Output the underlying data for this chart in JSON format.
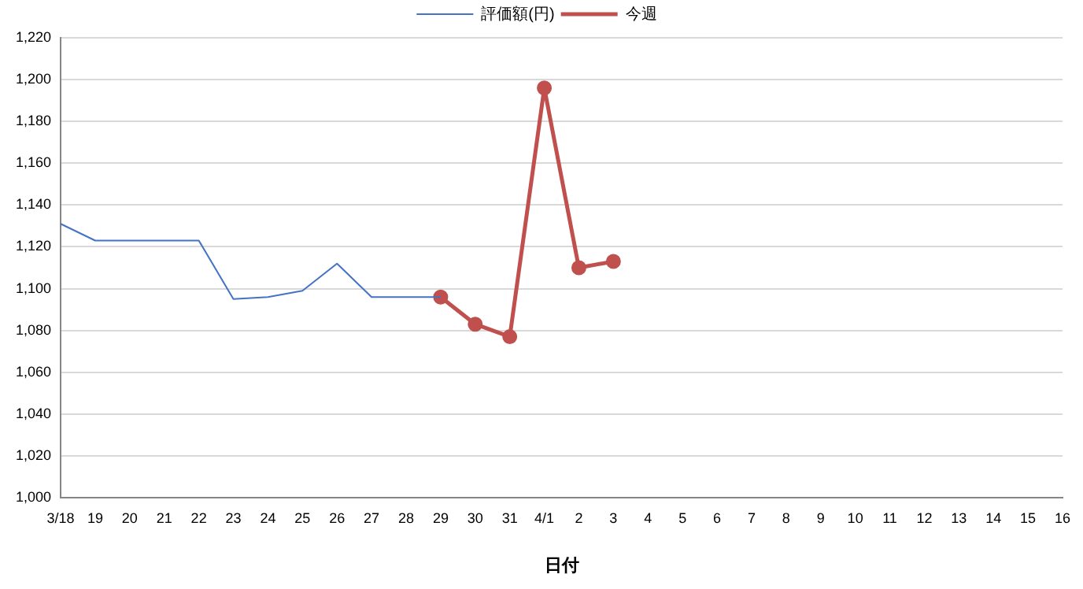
{
  "chart_data": {
    "type": "line",
    "xlabel": "日付",
    "categories": [
      "3/18",
      "19",
      "20",
      "21",
      "22",
      "23",
      "24",
      "25",
      "26",
      "27",
      "28",
      "29",
      "30",
      "31",
      "4/1",
      "2",
      "3",
      "4",
      "5",
      "6",
      "7",
      "8",
      "9",
      "10",
      "11",
      "12",
      "13",
      "14",
      "15",
      "16"
    ],
    "series": [
      {
        "name": "評価額(円)",
        "color": "#4472c4",
        "marker": "none",
        "values": [
          1131,
          1123,
          1123,
          1123,
          1123,
          1095,
          1096,
          1099,
          1112,
          1096,
          1096,
          1096,
          null,
          null,
          null,
          null,
          null,
          null,
          null,
          null,
          null,
          null,
          null,
          null,
          null,
          null,
          null,
          null,
          null,
          null
        ]
      },
      {
        "name": "今週",
        "color": "#c0504d",
        "marker": "circle",
        "values": [
          null,
          null,
          null,
          null,
          null,
          null,
          null,
          null,
          null,
          null,
          null,
          1096,
          1083,
          1077,
          1196,
          1110,
          1113,
          null,
          null,
          null,
          null,
          null,
          null,
          null,
          null,
          null,
          null,
          null,
          null,
          null
        ]
      }
    ],
    "ylim": [
      1000,
      1220
    ],
    "yticks": [
      {
        "value": 1000,
        "label": "1,000"
      },
      {
        "value": 1020,
        "label": "1,020"
      },
      {
        "value": 1040,
        "label": "1,040"
      },
      {
        "value": 1060,
        "label": "1,060"
      },
      {
        "value": 1080,
        "label": "1,080"
      },
      {
        "value": 1100,
        "label": "1,100"
      },
      {
        "value": 1120,
        "label": "1,120"
      },
      {
        "value": 1140,
        "label": "1,140"
      },
      {
        "value": 1160,
        "label": "1,160"
      },
      {
        "value": 1180,
        "label": "1,180"
      },
      {
        "value": 1200,
        "label": "1,200"
      },
      {
        "value": 1220,
        "label": "1,220"
      }
    ],
    "grid": "y",
    "legend": "top"
  }
}
